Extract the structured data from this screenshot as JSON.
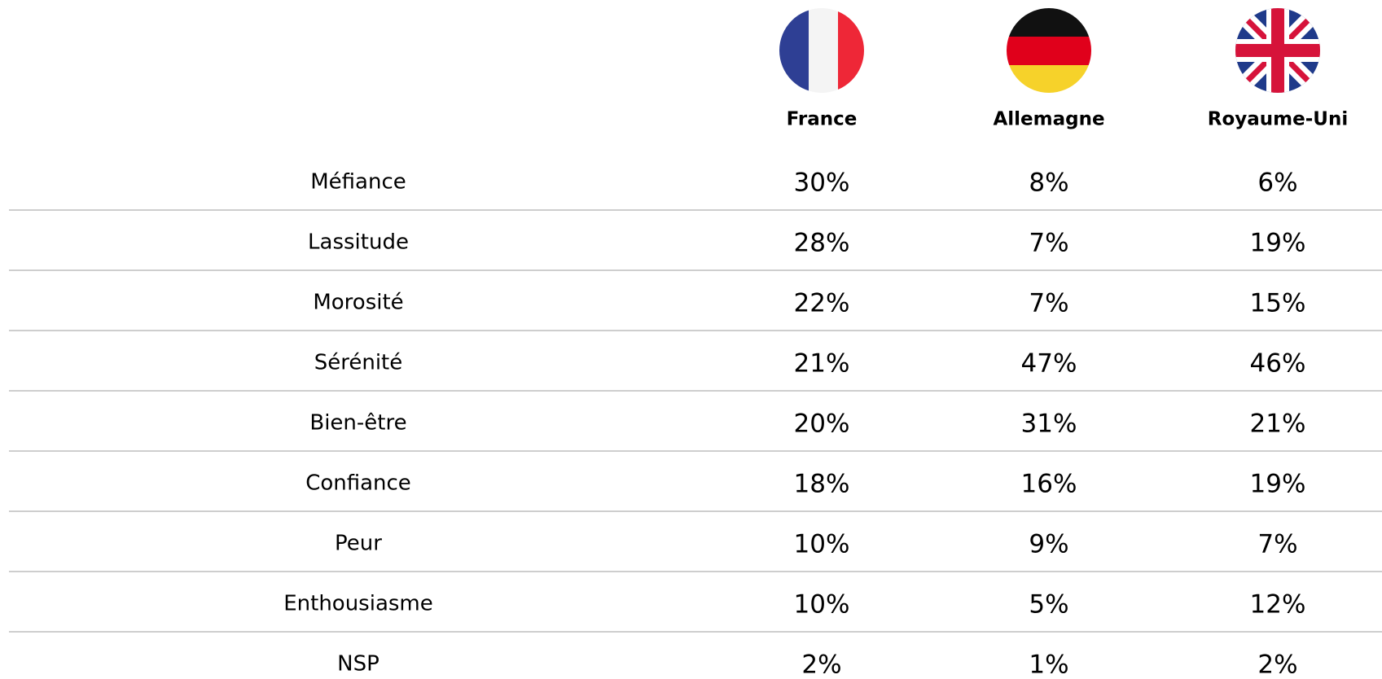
{
  "table": {
    "columns": [
      "France",
      "Allemagne",
      "Royaume-Uni"
    ],
    "rows": [
      {
        "label": "Méfiance",
        "cells": [
          "30%",
          "8%",
          "6%"
        ]
      },
      {
        "label": "Lassitude",
        "cells": [
          "28%",
          "7%",
          "19%"
        ]
      },
      {
        "label": "Morosité",
        "cells": [
          "22%",
          "7%",
          "15%"
        ]
      },
      {
        "label": "Sérénité",
        "cells": [
          "21%",
          "47%",
          "46%"
        ]
      },
      {
        "label": "Bien-être",
        "cells": [
          "20%",
          "31%",
          "21%"
        ]
      },
      {
        "label": "Confiance",
        "cells": [
          "18%",
          "16%",
          "19%"
        ]
      },
      {
        "label": "Peur",
        "cells": [
          "10%",
          "9%",
          "7%"
        ]
      },
      {
        "label": "Enthousiasme",
        "cells": [
          "10%",
          "5%",
          "12%"
        ]
      },
      {
        "label": "NSP",
        "cells": [
          "2%",
          "1%",
          "2%"
        ]
      }
    ]
  }
}
